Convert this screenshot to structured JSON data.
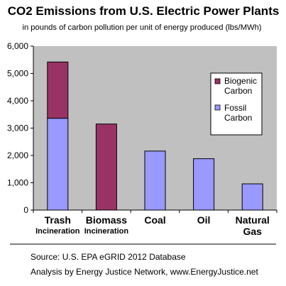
{
  "chart_data": {
    "type": "bar",
    "stacked": true,
    "title": "CO2 Emissions from U.S. Electric Power Plants",
    "subtitle": "in pounds of carbon pollution per unit of energy produced (lbs/MWh)",
    "categories": [
      [
        "Trash",
        "Incineration"
      ],
      [
        "Biomass",
        "Incineration"
      ],
      [
        "Coal"
      ],
      [
        "Oil"
      ],
      [
        "Natural",
        "Gas"
      ]
    ],
    "series": [
      {
        "name": "Fossil Carbon",
        "color": "#9999ff",
        "values": [
          3360,
          0,
          2160,
          1880,
          960
        ]
      },
      {
        "name": "Biogenic Carbon",
        "color": "#993366",
        "values": [
          2060,
          3150,
          0,
          0,
          0
        ]
      }
    ],
    "legend_order": [
      "Biogenic Carbon",
      "Fossil Carbon"
    ],
    "legend_position": "right",
    "ylim": [
      0,
      6000
    ],
    "yticks": [
      "0",
      "1,000",
      "2,000",
      "3,000",
      "4,000",
      "5,000",
      "6,000"
    ],
    "ytick_values": [
      0,
      1000,
      2000,
      3000,
      4000,
      5000,
      6000
    ],
    "plot_background": "#c0c0c0",
    "grid": false
  },
  "footer": {
    "source": "Source: U.S. EPA eGRID 2012 Database",
    "analysis": "Analysis by Energy Justice Network, www.EnergyJustice.net"
  }
}
